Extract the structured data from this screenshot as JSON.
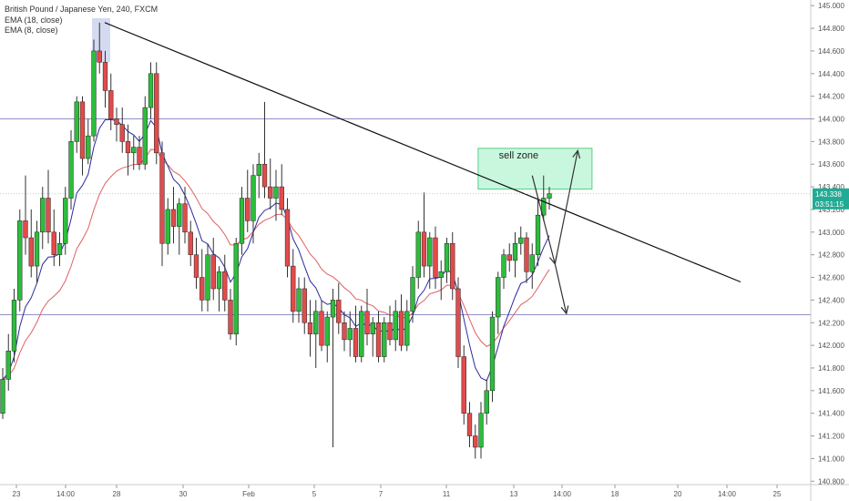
{
  "header": {
    "symbol_line": "British Pound / Japanese Yen, 240, FXCM",
    "ema1": "EMA (18, close)",
    "ema2": "EMA (8, close)"
  },
  "price_tag": {
    "price": "143.338",
    "countdown": "03:51:15",
    "color": "#22ab94"
  },
  "colors": {
    "up": "#2dbd3c",
    "down": "#e24b4b",
    "wick": "#333333",
    "ema18": "#e06060",
    "ema8": "#2a2aa0",
    "trendline": "#111111",
    "hline": "#9090c8",
    "zone_fill": "#c9f7dd",
    "zone_stroke": "#55d08a"
  },
  "annotations": {
    "sell_zone_label": "sell zone"
  },
  "chart_data": {
    "type": "candlestick",
    "title": "British Pound / Japanese Yen, 240, FXCM",
    "yaxis_ticks": [
      "145.000",
      "144.800",
      "144.600",
      "144.400",
      "144.200",
      "144.000",
      "143.800",
      "143.600",
      "143.400",
      "143.200",
      "143.000",
      "142.800",
      "142.600",
      "142.400",
      "142.200",
      "142.000",
      "141.800",
      "141.600",
      "141.400",
      "141.200",
      "141.000",
      "140.800"
    ],
    "xaxis_ticks": [
      "23",
      "14:00",
      "28",
      "30",
      "Feb",
      "5",
      "7",
      "11",
      "13",
      "14:00",
      "18",
      "20",
      "14:00",
      "25"
    ],
    "ylim": [
      140.77,
      145.05
    ],
    "series": [
      {
        "name": "GBPJPY",
        "ohlc": [
          [
            141.4,
            141.8,
            141.35,
            141.7
          ],
          [
            141.7,
            142.1,
            141.6,
            141.95
          ],
          [
            141.95,
            142.5,
            141.85,
            142.4
          ],
          [
            142.4,
            143.2,
            142.3,
            143.1
          ],
          [
            143.1,
            143.5,
            142.8,
            142.95
          ],
          [
            142.95,
            143.2,
            142.6,
            142.7
          ],
          [
            142.7,
            143.1,
            142.55,
            143.0
          ],
          [
            143.0,
            143.4,
            142.85,
            143.3
          ],
          [
            143.3,
            143.55,
            142.9,
            143.0
          ],
          [
            143.0,
            143.2,
            142.7,
            142.8
          ],
          [
            142.8,
            143.0,
            142.7,
            142.9
          ],
          [
            142.9,
            143.4,
            142.8,
            143.3
          ],
          [
            143.3,
            143.9,
            143.2,
            143.8
          ],
          [
            143.8,
            144.2,
            143.7,
            144.15
          ],
          [
            144.15,
            144.2,
            143.5,
            143.65
          ],
          [
            143.65,
            144.0,
            143.6,
            143.85
          ],
          [
            143.85,
            144.7,
            143.8,
            144.6
          ],
          [
            144.6,
            144.85,
            144.4,
            144.5
          ],
          [
            144.5,
            144.6,
            144.1,
            144.25
          ],
          [
            144.25,
            144.4,
            143.9,
            144.0
          ],
          [
            144.0,
            144.1,
            143.8,
            143.95
          ],
          [
            143.95,
            144.1,
            143.7,
            143.8
          ],
          [
            143.8,
            143.95,
            143.5,
            143.7
          ],
          [
            143.7,
            143.85,
            143.55,
            143.75
          ],
          [
            143.75,
            143.85,
            143.55,
            143.6
          ],
          [
            143.6,
            144.2,
            143.55,
            144.1
          ],
          [
            144.1,
            144.5,
            144.0,
            144.4
          ],
          [
            144.4,
            144.5,
            143.6,
            143.7
          ],
          [
            143.7,
            143.8,
            142.7,
            142.9
          ],
          [
            142.9,
            143.3,
            142.8,
            143.2
          ],
          [
            143.2,
            143.4,
            142.9,
            143.05
          ],
          [
            143.05,
            143.3,
            142.8,
            143.25
          ],
          [
            143.25,
            143.4,
            142.9,
            143.0
          ],
          [
            143.0,
            143.1,
            142.7,
            142.8
          ],
          [
            142.8,
            142.95,
            142.5,
            142.6
          ],
          [
            142.6,
            142.85,
            142.3,
            142.4
          ],
          [
            142.4,
            142.9,
            142.3,
            142.8
          ],
          [
            142.8,
            142.95,
            142.4,
            142.5
          ],
          [
            142.5,
            142.7,
            142.3,
            142.65
          ],
          [
            142.65,
            142.8,
            142.3,
            142.4
          ],
          [
            142.4,
            142.5,
            142.05,
            142.1
          ],
          [
            142.1,
            142.95,
            142.0,
            142.9
          ],
          [
            142.9,
            143.4,
            142.8,
            143.3
          ],
          [
            143.3,
            143.55,
            143.0,
            143.1
          ],
          [
            143.1,
            143.6,
            142.9,
            143.5
          ],
          [
            143.5,
            143.7,
            143.3,
            143.6
          ],
          [
            143.6,
            144.15,
            143.3,
            143.4
          ],
          [
            143.4,
            143.65,
            143.2,
            143.3
          ],
          [
            143.3,
            143.55,
            143.1,
            143.4
          ],
          [
            143.4,
            143.6,
            143.15,
            143.2
          ],
          [
            143.2,
            143.3,
            142.6,
            142.7
          ],
          [
            142.7,
            142.85,
            142.2,
            142.3
          ],
          [
            142.3,
            142.6,
            142.2,
            142.5
          ],
          [
            142.5,
            142.6,
            142.1,
            142.2
          ],
          [
            142.2,
            142.4,
            141.9,
            142.1
          ],
          [
            142.1,
            142.4,
            141.8,
            142.3
          ],
          [
            142.3,
            142.4,
            141.95,
            142.0
          ],
          [
            142.0,
            142.3,
            141.85,
            142.25
          ],
          [
            142.25,
            142.5,
            141.1,
            142.4
          ],
          [
            142.4,
            142.55,
            142.1,
            142.2
          ],
          [
            142.2,
            142.3,
            141.95,
            142.05
          ],
          [
            142.05,
            142.3,
            141.9,
            142.15
          ],
          [
            142.15,
            142.35,
            141.85,
            141.9
          ],
          [
            141.9,
            142.35,
            141.85,
            142.3
          ],
          [
            142.3,
            142.5,
            142.0,
            142.1
          ],
          [
            142.1,
            142.25,
            141.9,
            142.2
          ],
          [
            142.2,
            142.3,
            141.85,
            141.9
          ],
          [
            141.9,
            142.25,
            141.85,
            142.2
          ],
          [
            142.2,
            142.35,
            142.0,
            142.05
          ],
          [
            142.05,
            142.4,
            141.95,
            142.3
          ],
          [
            142.3,
            142.45,
            141.95,
            142.0
          ],
          [
            142.0,
            142.4,
            141.95,
            142.3
          ],
          [
            142.3,
            142.7,
            142.2,
            142.6
          ],
          [
            142.6,
            143.1,
            142.5,
            143.0
          ],
          [
            143.0,
            143.35,
            142.6,
            142.7
          ],
          [
            142.7,
            143.0,
            142.5,
            142.95
          ],
          [
            142.95,
            143.05,
            142.5,
            142.6
          ],
          [
            142.6,
            142.75,
            142.4,
            142.65
          ],
          [
            142.65,
            142.95,
            142.55,
            142.9
          ],
          [
            142.9,
            143.0,
            142.4,
            142.5
          ],
          [
            142.5,
            142.6,
            141.8,
            141.9
          ],
          [
            141.9,
            142.0,
            141.3,
            141.4
          ],
          [
            141.4,
            141.5,
            141.1,
            141.2
          ],
          [
            141.2,
            141.3,
            141.0,
            141.1
          ],
          [
            141.1,
            141.5,
            141.0,
            141.4
          ],
          [
            141.4,
            141.7,
            141.3,
            141.6
          ],
          [
            141.6,
            142.3,
            141.5,
            142.25
          ],
          [
            142.25,
            142.65,
            142.1,
            142.6
          ],
          [
            142.6,
            142.85,
            142.5,
            142.8
          ],
          [
            142.8,
            142.9,
            142.65,
            142.75
          ],
          [
            142.75,
            143.0,
            142.6,
            142.9
          ],
          [
            142.9,
            143.05,
            142.8,
            142.95
          ],
          [
            142.95,
            143.0,
            142.55,
            142.65
          ],
          [
            142.65,
            142.9,
            142.5,
            142.8
          ],
          [
            142.8,
            143.3,
            142.7,
            143.15
          ],
          [
            143.15,
            143.5,
            143.1,
            143.3
          ],
          [
            143.3,
            143.4,
            143.2,
            143.34
          ]
        ]
      },
      {
        "name": "EMA (18, close)"
      },
      {
        "name": "EMA (8, close)"
      }
    ],
    "horizontal_lines": [
      144.0,
      142.27
    ],
    "trendline": [
      [
        0,
        144.85
      ],
      [
        108,
        142.56
      ]
    ],
    "sell_zone": {
      "x_range": [
        83.5,
        103.5
      ],
      "y_range": [
        143.38,
        143.74
      ]
    },
    "arrows": [
      {
        "from": [
          93,
          143.5
        ],
        "to": [
          97,
          142.72
        ]
      },
      {
        "from": [
          97,
          142.72
        ],
        "to": [
          101,
          143.72
        ]
      },
      {
        "from": [
          97,
          142.72
        ],
        "to": [
          99,
          142.28
        ]
      }
    ]
  }
}
